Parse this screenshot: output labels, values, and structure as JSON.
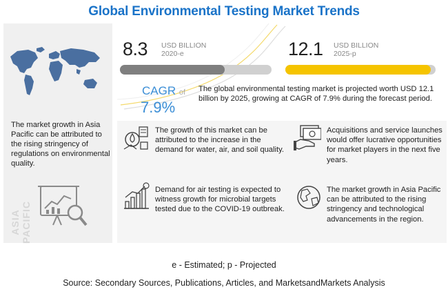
{
  "title": "Global Environmental Testing Market Trends",
  "left": {
    "map_icon": "world-map-icon",
    "text": "The market growth in Asia Pacific can be attributed to the rising stringency of regulations on environmental quality.",
    "region_label": "ASIA PACIFIC",
    "analysis_icon": "chart-magnifier-icon"
  },
  "metrics": {
    "m2020": {
      "value": "8.3",
      "unit": "USD BILLION",
      "year": "2020-e",
      "fill_fraction": 0.69,
      "color": "#7f7f7f"
    },
    "m2025": {
      "value": "12.1",
      "unit": "USD BILLION",
      "year": "2025-p",
      "fill_fraction": 0.97,
      "color": "#f5c400"
    }
  },
  "cagr": {
    "label": "CAGR",
    "of": "of",
    "value": "7.9%",
    "text": "The global environmental testing market is projected worth USD 12.1 billion by 2025, growing at CAGR of 7.9% during the forecast period."
  },
  "points": [
    {
      "icon": "water-air-soil-icon",
      "text": "The growth of this market can be attributed to the increase in the demand for water, air, and soil quality."
    },
    {
      "icon": "money-handshake-icon",
      "text": "Acquisitions and service launches would offer lucrative opportunities for market players in the next five years."
    },
    {
      "icon": "growth-chart-icon",
      "text": "Demand for air testing is expected to witness growth for microbial targets tested due to the COVID-19 outbreak."
    },
    {
      "icon": "globe-icon",
      "text": "The market growth in Asia Pacific can be attributed to the rising stringency and technological advancements in the region."
    }
  ],
  "footer": {
    "legend": "e - Estimated; p - Projected",
    "source": "Source: Secondary Sources, Publications, Articles, and MarketsandMarkets Analysis"
  },
  "colors": {
    "title": "#1a73c8",
    "cagr": "#3b8ed6",
    "bar2020": "#7f7f7f",
    "bar2025": "#f5c400",
    "track": "#d0d0d0"
  }
}
